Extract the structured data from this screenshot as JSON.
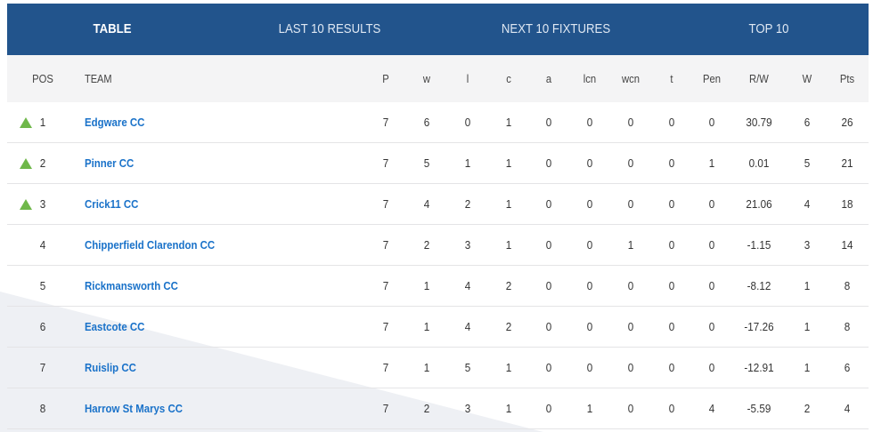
{
  "tabs": [
    {
      "label": "TABLE",
      "active": true
    },
    {
      "label": "LAST 10 RESULTS",
      "active": false
    },
    {
      "label": "NEXT 10 FIXTURES",
      "active": false
    },
    {
      "label": "TOP 10",
      "active": false
    }
  ],
  "colors": {
    "header_bar": "#22548c",
    "team_link": "#1a72c9",
    "up_arrow": "#6fb84a"
  },
  "columns": [
    "POS",
    "TEAM",
    "P",
    "w",
    "l",
    "c",
    "a",
    "lcn",
    "wcn",
    "t",
    "Pen",
    "R/W",
    "W",
    "Pts"
  ],
  "rows": [
    {
      "trend": "up-arrow-icon",
      "cells": [
        "1",
        "Edgware CC",
        "7",
        "6",
        "0",
        "1",
        "0",
        "0",
        "0",
        "0",
        "0",
        "30.79",
        "6",
        "26"
      ]
    },
    {
      "trend": "up-arrow-icon",
      "cells": [
        "2",
        "Pinner CC",
        "7",
        "5",
        "1",
        "1",
        "0",
        "0",
        "0",
        "0",
        "1",
        "0.01",
        "5",
        "21"
      ]
    },
    {
      "trend": "up-arrow-icon",
      "cells": [
        "3",
        "Crick11 CC",
        "7",
        "4",
        "2",
        "1",
        "0",
        "0",
        "0",
        "0",
        "0",
        "21.06",
        "4",
        "18"
      ]
    },
    {
      "trend": "",
      "cells": [
        "4",
        "Chipperfield Clarendon CC",
        "7",
        "2",
        "3",
        "1",
        "0",
        "0",
        "1",
        "0",
        "0",
        "-1.15",
        "3",
        "14"
      ]
    },
    {
      "trend": "",
      "cells": [
        "5",
        "Rickmansworth CC",
        "7",
        "1",
        "4",
        "2",
        "0",
        "0",
        "0",
        "0",
        "0",
        "-8.12",
        "1",
        "8"
      ]
    },
    {
      "trend": "",
      "cells": [
        "6",
        "Eastcote CC",
        "7",
        "1",
        "4",
        "2",
        "0",
        "0",
        "0",
        "0",
        "0",
        "-17.26",
        "1",
        "8"
      ]
    },
    {
      "trend": "",
      "cells": [
        "7",
        "Ruislip CC",
        "7",
        "1",
        "5",
        "1",
        "0",
        "0",
        "0",
        "0",
        "0",
        "-12.91",
        "1",
        "6"
      ]
    },
    {
      "trend": "",
      "cells": [
        "8",
        "Harrow St Marys CC",
        "7",
        "2",
        "3",
        "1",
        "0",
        "1",
        "0",
        "0",
        "4",
        "-5.59",
        "2",
        "4"
      ]
    }
  ]
}
